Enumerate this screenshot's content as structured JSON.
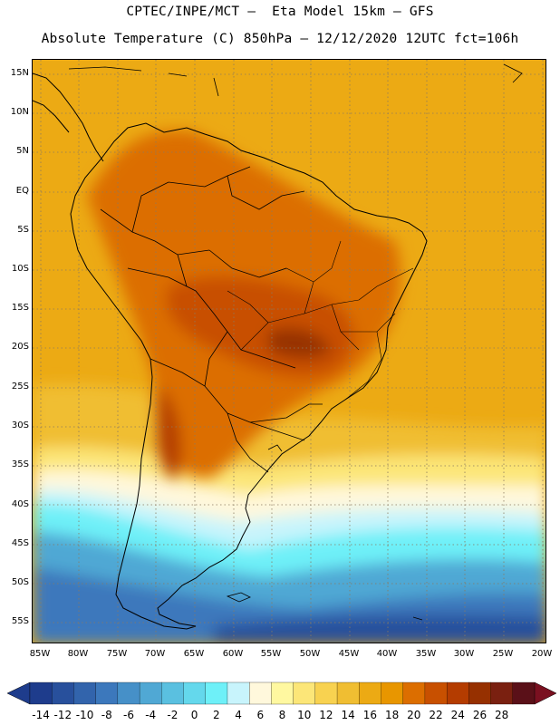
{
  "header": {
    "line1": "CPTEC/INPE/MCT –  Eta Model 15km – GFS",
    "line2": "Absolute Temperature (C) 850hPa – 12/12/2020 12UTC fct=106h"
  },
  "map": {
    "lat_labels": [
      "15N",
      "10N",
      "5N",
      "EQ",
      "5S",
      "10S",
      "15S",
      "20S",
      "25S",
      "30S",
      "35S",
      "40S",
      "45S",
      "50S",
      "55S"
    ],
    "lon_labels": [
      "85W",
      "80W",
      "75W",
      "70W",
      "65W",
      "60W",
      "55W",
      "50W",
      "45W",
      "40W",
      "35W",
      "30W",
      "25W",
      "20W"
    ]
  },
  "colorbar": {
    "ticks": [
      "-14",
      "-12",
      "-10",
      "-8",
      "-6",
      "-4",
      "-2",
      "0",
      "2",
      "4",
      "6",
      "8",
      "10",
      "12",
      "14",
      "16",
      "18",
      "20",
      "22",
      "24",
      "26",
      "28"
    ],
    "colors": [
      "#1e3c8c",
      "#28509c",
      "#3264ac",
      "#3c78bc",
      "#4690c8",
      "#50a8d4",
      "#5ac0e0",
      "#64d8ec",
      "#6ef0f8",
      "#c8f4fc",
      "#fff8dc",
      "#fff8a0",
      "#fce678",
      "#f8d250",
      "#f0be32",
      "#ecaa14",
      "#e89600",
      "#dc6e00",
      "#c85000",
      "#b43c00",
      "#963000",
      "#7a2010",
      "#5a1018"
    ],
    "under_color": "#1e3c8c",
    "over_color": "#7a1020"
  }
}
